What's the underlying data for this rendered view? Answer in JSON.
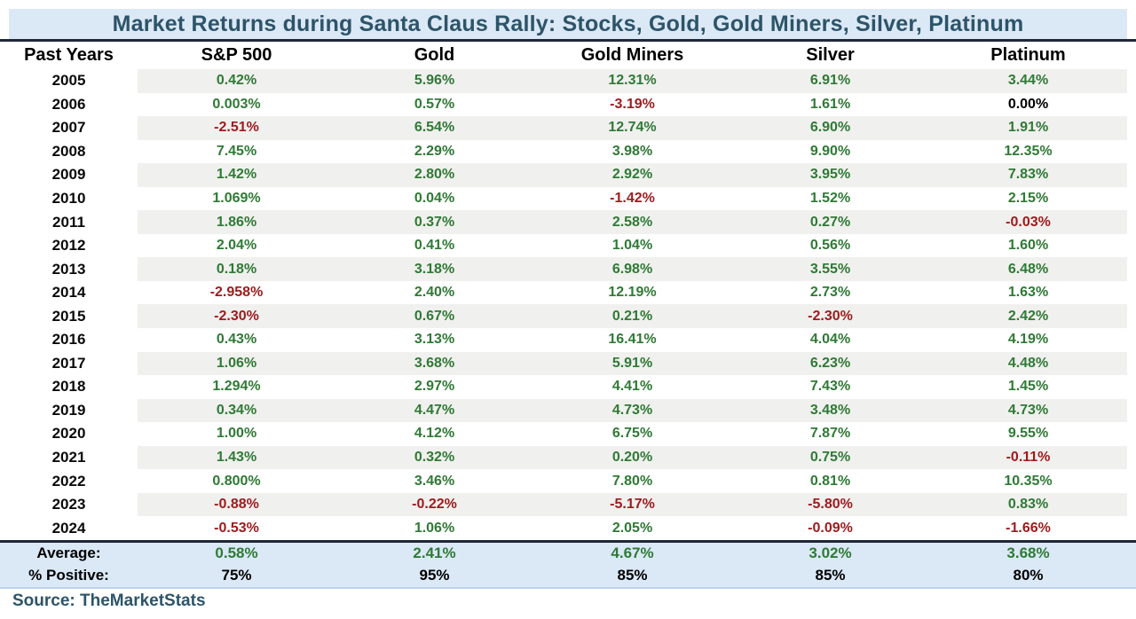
{
  "title": "Market Returns during Santa Claus Rally: Stocks, Gold, Gold Miners, Silver, Platinum",
  "source_label": "Source: TheMarketStats",
  "colors": {
    "positive": "#2f7a35",
    "negative": "#9e1a1d",
    "neutral": "#000000",
    "band_bg": "#dbe8f6",
    "stripe": "#f0f0ee",
    "rule": "#1e2837",
    "title_text": "#2d5469"
  },
  "chart_data": {
    "type": "table",
    "title": "Market Returns during Santa Claus Rally: Stocks, Gold, Gold Miners, Silver, Platinum",
    "columns": [
      "Past Years",
      "S&P 500",
      "Gold",
      "Gold Miners",
      "Silver",
      "Platinum"
    ],
    "rows": [
      {
        "year": "2005",
        "values": [
          "0.42%",
          "5.96%",
          "12.31%",
          "6.91%",
          "3.44%"
        ]
      },
      {
        "year": "2006",
        "values": [
          "0.003%",
          "0.57%",
          "-3.19%",
          "1.61%",
          "0.00%"
        ]
      },
      {
        "year": "2007",
        "values": [
          "-2.51%",
          "6.54%",
          "12.74%",
          "6.90%",
          "1.91%"
        ]
      },
      {
        "year": "2008",
        "values": [
          "7.45%",
          "2.29%",
          "3.98%",
          "9.90%",
          "12.35%"
        ]
      },
      {
        "year": "2009",
        "values": [
          "1.42%",
          "2.80%",
          "2.92%",
          "3.95%",
          "7.83%"
        ]
      },
      {
        "year": "2010",
        "values": [
          "1.069%",
          "0.04%",
          "-1.42%",
          "1.52%",
          "2.15%"
        ]
      },
      {
        "year": "2011",
        "values": [
          "1.86%",
          "0.37%",
          "2.58%",
          "0.27%",
          "-0.03%"
        ]
      },
      {
        "year": "2012",
        "values": [
          "2.04%",
          "0.41%",
          "1.04%",
          "0.56%",
          "1.60%"
        ]
      },
      {
        "year": "2013",
        "values": [
          "0.18%",
          "3.18%",
          "6.98%",
          "3.55%",
          "6.48%"
        ]
      },
      {
        "year": "2014",
        "values": [
          "-2.958%",
          "2.40%",
          "12.19%",
          "2.73%",
          "1.63%"
        ]
      },
      {
        "year": "2015",
        "values": [
          "-2.30%",
          "0.67%",
          "0.21%",
          "-2.30%",
          "2.42%"
        ]
      },
      {
        "year": "2016",
        "values": [
          "0.43%",
          "3.13%",
          "16.41%",
          "4.04%",
          "4.19%"
        ]
      },
      {
        "year": "2017",
        "values": [
          "1.06%",
          "3.68%",
          "5.91%",
          "6.23%",
          "4.48%"
        ]
      },
      {
        "year": "2018",
        "values": [
          "1.294%",
          "2.97%",
          "4.41%",
          "7.43%",
          "1.45%"
        ]
      },
      {
        "year": "2019",
        "values": [
          "0.34%",
          "4.47%",
          "4.73%",
          "3.48%",
          "4.73%"
        ]
      },
      {
        "year": "2020",
        "values": [
          "1.00%",
          "4.12%",
          "6.75%",
          "7.87%",
          "9.55%"
        ]
      },
      {
        "year": "2021",
        "values": [
          "1.43%",
          "0.32%",
          "0.20%",
          "0.75%",
          "-0.11%"
        ]
      },
      {
        "year": "2022",
        "values": [
          "0.800%",
          "3.46%",
          "7.80%",
          "0.81%",
          "10.35%"
        ]
      },
      {
        "year": "2023",
        "values": [
          "-0.88%",
          "-0.22%",
          "-5.17%",
          "-5.80%",
          "0.83%"
        ]
      },
      {
        "year": "2024",
        "values": [
          "-0.53%",
          "1.06%",
          "2.05%",
          "-0.09%",
          "-1.66%"
        ]
      }
    ],
    "summary": [
      {
        "label": "Average:",
        "style": "positive",
        "values": [
          "0.58%",
          "2.41%",
          "4.67%",
          "3.02%",
          "3.68%"
        ]
      },
      {
        "label": "% Positive:",
        "style": "neutral",
        "values": [
          "75%",
          "95%",
          "85%",
          "85%",
          "80%"
        ]
      }
    ]
  }
}
